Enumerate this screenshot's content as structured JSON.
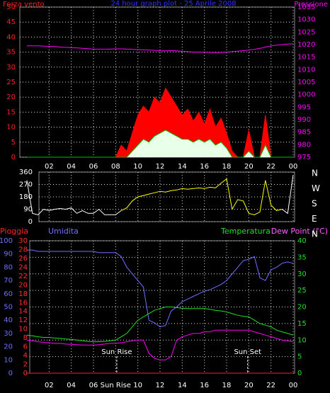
{
  "chart_data": [
    {
      "type": "area",
      "title": "24 hour graph plot - 25 Aprile 2008",
      "ylabel": "Forza vento",
      "y2label": "Pressione",
      "x": [
        0,
        0.5,
        1,
        1.5,
        2,
        2.5,
        3,
        3.5,
        4,
        4.5,
        5,
        5.5,
        6,
        6.5,
        7,
        7.5,
        8,
        8.5,
        9,
        9.5,
        10,
        10.5,
        11,
        11.5,
        12,
        12.5,
        13,
        13.5,
        14,
        14.5,
        15,
        15.5,
        16,
        16.5,
        17,
        17.5,
        18,
        18.5,
        19,
        19.5,
        20,
        20.5,
        21,
        21.5,
        22,
        22.5,
        23,
        23.5,
        24
      ],
      "xlim": [
        0,
        24
      ],
      "xticks": [
        {
          "value": 2,
          "label": "02"
        },
        {
          "value": 4,
          "label": "04"
        },
        {
          "value": 6,
          "label": "06"
        },
        {
          "value": 8,
          "label": "08"
        },
        10,
        12,
        14,
        16,
        18,
        20,
        22,
        {
          "value": 24,
          "label": "00"
        }
      ],
      "ylim": [
        0,
        50
      ],
      "yticks": [
        0,
        5,
        10,
        15,
        20,
        25,
        30,
        35,
        40,
        45,
        50
      ],
      "y2lim": [
        975,
        1035
      ],
      "y2ticks": [
        975,
        980,
        985,
        990,
        995,
        1000,
        1005,
        1010,
        1015,
        1020,
        1025,
        1030,
        1035
      ],
      "grid": true,
      "series": [
        {
          "color": "#ff0000",
          "fill": "#ff0000",
          "values": [
            0,
            0,
            0,
            0,
            0,
            0,
            0,
            0,
            0,
            0,
            0,
            0,
            0,
            0,
            0,
            0,
            0,
            4,
            2,
            8,
            14,
            17,
            15,
            20,
            18,
            23,
            20,
            17,
            14,
            16,
            12,
            15,
            11,
            16,
            10,
            13,
            8,
            2,
            0,
            0,
            9,
            0,
            0,
            14,
            0,
            0,
            0,
            0,
            0
          ]
        },
        {
          "color": "#00c000",
          "fill": "#e8ffe8",
          "values": [
            0,
            0,
            0,
            0,
            0,
            0,
            0,
            0,
            0,
            0,
            0,
            0,
            0,
            0,
            0,
            0,
            0,
            0,
            0,
            2,
            4,
            6,
            5,
            7,
            8,
            9,
            8,
            7,
            6,
            6,
            5,
            6,
            5,
            6,
            4,
            5,
            3,
            0,
            0,
            0,
            2,
            0,
            0,
            4,
            0,
            0,
            0,
            0,
            0
          ]
        },
        {
          "color": "#ff00ff",
          "axis": "y2",
          "values": [
            1019.5,
            1019.5,
            1019.5,
            1019.4,
            1019.3,
            1019.2,
            1019,
            1018.9,
            1018.8,
            1018.7,
            1018.5,
            1018.4,
            1018.2,
            1018.2,
            1018.2,
            1018.2,
            1018.3,
            1018.3,
            1018.2,
            1018.1,
            1018,
            1017.9,
            1017.8,
            1017.7,
            1017.5,
            1017.5,
            1017.6,
            1017.5,
            1017.3,
            1017.2,
            1017,
            1017,
            1017,
            1016.9,
            1016.8,
            1016.9,
            1017,
            1017.2,
            1017.4,
            1017.6,
            1017.8,
            1018.1,
            1018.5,
            1019,
            1019.5,
            1019.8,
            1020,
            1020.2,
            1020.3
          ]
        }
      ]
    },
    {
      "type": "line",
      "x": [
        0,
        0.5,
        1,
        1.5,
        2,
        2.5,
        3,
        3.5,
        4,
        4.5,
        5,
        5.5,
        6,
        6.5,
        7,
        7.5,
        8,
        8.5,
        9,
        9.5,
        10,
        10.5,
        11,
        11.5,
        12,
        12.5,
        13,
        13.5,
        14,
        14.5,
        15,
        15.5,
        16,
        16.5,
        17,
        17.5,
        18,
        18.5,
        19,
        19.5,
        20,
        20.5,
        21,
        21.5,
        22,
        22.5,
        23,
        23.5,
        24
      ],
      "xlim": [
        0,
        24
      ],
      "xticks": [
        2,
        4,
        6,
        8,
        10,
        12,
        14,
        16,
        18,
        20,
        22,
        24
      ],
      "ylim": [
        0,
        360
      ],
      "yticks": [
        0,
        90,
        180,
        270,
        360
      ],
      "compass": [
        "N",
        "W",
        "S",
        "E",
        "N"
      ],
      "grid": true,
      "series": [
        {
          "color": "#ffffff",
          "values": [
            300,
            60,
            50,
            90,
            80,
            90,
            95,
            90,
            100,
            60,
            80,
            60,
            60,
            90,
            50,
            50,
            50,
            80,
            null,
            null,
            null,
            null,
            null,
            null,
            null,
            null,
            null,
            null,
            null,
            null,
            null,
            null,
            null,
            null,
            null,
            null,
            null,
            null,
            null,
            null,
            null,
            null,
            null,
            null,
            null,
            null,
            90,
            60,
            340
          ]
        },
        {
          "color": "#ffff00",
          "values": [
            null,
            null,
            null,
            null,
            null,
            null,
            null,
            null,
            null,
            null,
            null,
            null,
            null,
            null,
            null,
            null,
            null,
            80,
            100,
            150,
            180,
            190,
            200,
            210,
            220,
            215,
            225,
            230,
            240,
            235,
            240,
            245,
            240,
            250,
            245,
            280,
            310,
            90,
            160,
            150,
            60,
            50,
            70,
            300,
            120,
            80,
            90,
            null,
            null
          ]
        }
      ]
    },
    {
      "type": "line",
      "ylabel": "Umidita",
      "y3label": "Pioggia",
      "y2label": "Temperatura",
      "y2label_right": "Dew Point (°C)",
      "x": [
        0,
        0.5,
        1,
        1.5,
        2,
        2.5,
        3,
        3.5,
        4,
        4.5,
        5,
        5.5,
        6,
        6.5,
        7,
        7.5,
        8,
        8.5,
        9,
        9.5,
        10,
        10.5,
        11,
        11.5,
        12,
        12.5,
        13,
        13.5,
        14,
        14.5,
        15,
        15.5,
        16,
        16.5,
        17,
        17.5,
        18,
        18.5,
        19,
        19.5,
        20,
        20.5,
        21,
        21.5,
        22,
        22.5,
        23,
        23.5,
        24
      ],
      "xlim": [
        0,
        24
      ],
      "xticks": [
        {
          "value": 2,
          "label": "02"
        },
        {
          "value": 4,
          "label": "04"
        },
        {
          "value": 6,
          "label": "06"
        },
        {
          "value": 8,
          "label": "Sun Rise"
        },
        10,
        12,
        14,
        16,
        18,
        20,
        22,
        {
          "value": 24,
          "label": "00"
        }
      ],
      "ylim": [
        0,
        100
      ],
      "yticks": [
        0,
        10,
        20,
        30,
        40,
        50,
        60,
        70,
        80,
        90,
        100
      ],
      "y3lim": [
        0,
        30
      ],
      "y3ticks": [
        0,
        2,
        4,
        6,
        8,
        10,
        12,
        14,
        16,
        18,
        20,
        22,
        24,
        26,
        28,
        30
      ],
      "y2lim": [
        0,
        40
      ],
      "y2ticks": [
        0,
        5,
        10,
        15,
        20,
        25,
        30,
        35,
        40
      ],
      "grid": true,
      "annotations": [
        {
          "text": "Sun Rise",
          "x": 8.1
        },
        {
          "text": "Sun Set",
          "x": 19.9
        }
      ],
      "series": [
        {
          "color": "#ff2020",
          "axis": "y3",
          "values": [
            0,
            0,
            0,
            0,
            0,
            0,
            0,
            0,
            0,
            0,
            0,
            0,
            0,
            0,
            0,
            0,
            0,
            0,
            0,
            0,
            0,
            0,
            0,
            0,
            0,
            0,
            0,
            0,
            0,
            0,
            0,
            0,
            0,
            0,
            0,
            0,
            0,
            0,
            0,
            0,
            0,
            0,
            0,
            0,
            0,
            0,
            0,
            0,
            0
          ]
        },
        {
          "color": "#7070ff",
          "values": [
            93,
            93,
            92,
            92,
            92,
            92,
            92,
            92,
            92,
            92,
            92,
            92,
            92,
            91,
            91,
            91,
            91,
            88,
            80,
            75,
            70,
            65,
            40,
            38,
            35,
            36,
            47,
            50,
            54,
            56,
            58,
            60,
            62,
            63,
            65,
            67,
            70,
            75,
            80,
            85,
            86,
            88,
            72,
            70,
            78,
            80,
            83,
            84,
            83
          ]
        },
        {
          "color": "#20e020",
          "axis": "y2",
          "values": [
            11.5,
            11.3,
            11,
            10.8,
            10.8,
            10.6,
            10.5,
            10.3,
            10.2,
            10,
            9.8,
            9.6,
            9.5,
            9.5,
            9.6,
            9.8,
            10,
            11,
            12,
            14,
            16,
            17,
            18,
            19,
            19.5,
            20,
            20,
            19.8,
            19.6,
            19.5,
            19.5,
            19.5,
            19.5,
            19.3,
            19,
            18.8,
            18.5,
            18,
            17.5,
            17.2,
            17,
            16,
            15,
            14.5,
            14,
            13,
            12.5,
            12,
            11.5
          ]
        },
        {
          "color": "#ff00ff",
          "axis": "y2",
          "values": [
            10,
            9.8,
            9.5,
            9.3,
            9.2,
            9,
            9,
            8.8,
            8.7,
            8.6,
            8.5,
            8.5,
            8.5,
            8.6,
            8.8,
            9,
            9,
            9.2,
            9.5,
            9.8,
            10,
            10,
            6,
            4.5,
            4,
            4,
            5,
            10,
            11,
            11.5,
            12,
            12,
            12.5,
            12.5,
            13,
            13,
            13,
            13,
            13,
            13,
            13,
            12.5,
            12,
            11.5,
            11,
            10.5,
            10,
            9.8,
            9.5
          ]
        }
      ]
    }
  ]
}
